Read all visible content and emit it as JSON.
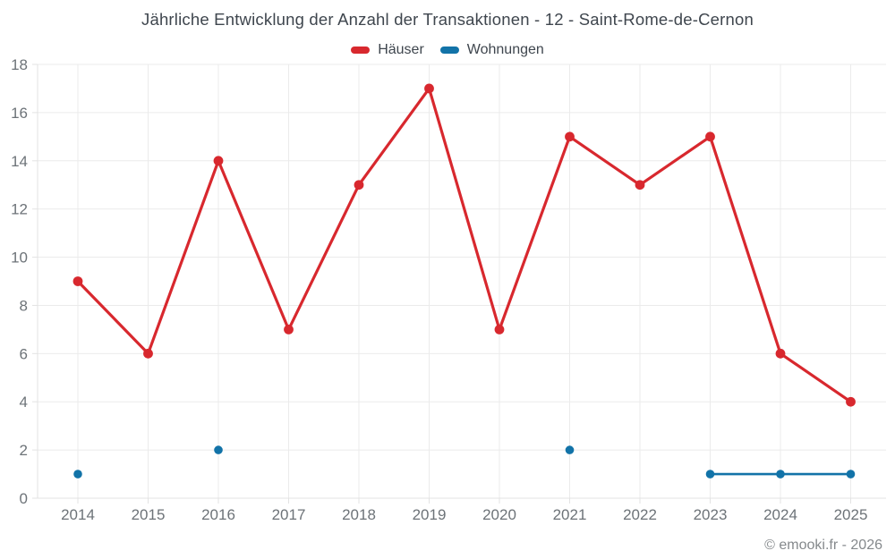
{
  "title": "Jährliche Entwicklung der Anzahl der Transaktionen - 12 - Saint-Rome-de-Cernon",
  "footer": "© emooki.fr - 2026",
  "chart_data": {
    "type": "line",
    "title": "Jährliche Entwicklung der Anzahl der Transaktionen - 12 - Saint-Rome-de-Cernon",
    "x": [
      2014,
      2015,
      2016,
      2017,
      2018,
      2019,
      2020,
      2021,
      2022,
      2023,
      2024,
      2025
    ],
    "series": [
      {
        "name": "Häuser",
        "color": "#d8282e",
        "values": [
          9,
          6,
          14,
          7,
          13,
          17,
          7,
          15,
          13,
          15,
          6,
          4
        ]
      },
      {
        "name": "Wohnungen",
        "color": "#1273a8",
        "values": [
          1,
          null,
          2,
          null,
          null,
          null,
          null,
          2,
          null,
          1,
          1,
          1
        ]
      }
    ],
    "xlabel": "",
    "ylabel": "",
    "ylim": [
      0,
      18
    ],
    "y_ticks": [
      0,
      2,
      4,
      6,
      8,
      10,
      12,
      14,
      16,
      18
    ],
    "grid": true,
    "legend_position": "top"
  }
}
